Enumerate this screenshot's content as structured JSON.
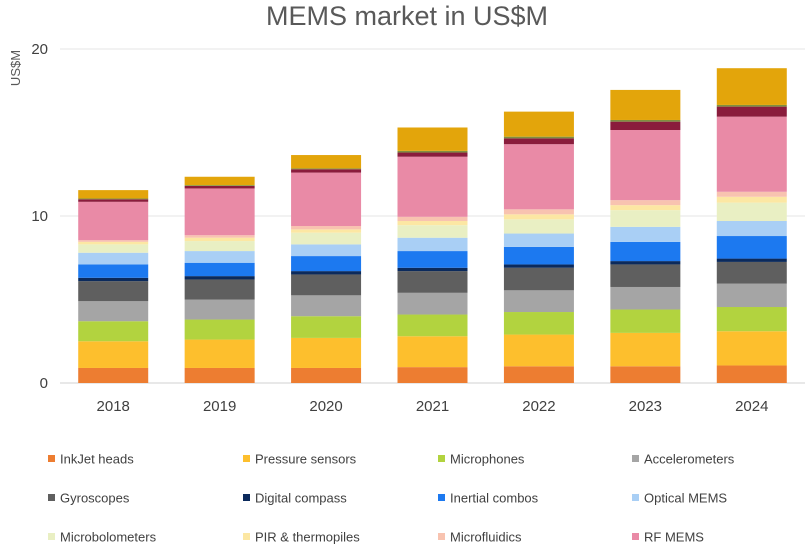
{
  "chart_data": {
    "type": "bar",
    "stacked": true,
    "title": "MEMS market in US$M",
    "ylabel": "US$M",
    "xlabel": "",
    "ylim": [
      0,
      20
    ],
    "yticks": [
      0,
      10,
      20
    ],
    "grid": true,
    "legend_position": "bottom",
    "categories": [
      "2018",
      "2019",
      "2020",
      "2021",
      "2022",
      "2023",
      "2024"
    ],
    "series": [
      {
        "name": "InkJet heads",
        "color": "#ed7d31",
        "values": [
          0.9,
          0.9,
          0.9,
          0.95,
          1.0,
          1.0,
          1.05
        ]
      },
      {
        "name": "Pressure sensors",
        "color": "#fdbf2d",
        "values": [
          1.6,
          1.7,
          1.8,
          1.85,
          1.9,
          2.0,
          2.05
        ]
      },
      {
        "name": "Microphones",
        "color": "#b2d33f",
        "values": [
          1.2,
          1.2,
          1.3,
          1.3,
          1.35,
          1.4,
          1.45
        ]
      },
      {
        "name": "Accelerometers",
        "color": "#a5a5a5",
        "values": [
          1.2,
          1.2,
          1.25,
          1.3,
          1.3,
          1.35,
          1.4
        ]
      },
      {
        "name": "Gyroscopes",
        "color": "#5f5f5f",
        "values": [
          1.2,
          1.2,
          1.25,
          1.3,
          1.35,
          1.35,
          1.3
        ]
      },
      {
        "name": "Digital compass",
        "color": "#0b2a5c",
        "values": [
          0.2,
          0.2,
          0.2,
          0.2,
          0.2,
          0.2,
          0.2
        ]
      },
      {
        "name": "Inertial combos",
        "color": "#1c79f0",
        "values": [
          0.8,
          0.8,
          0.9,
          1.0,
          1.05,
          1.15,
          1.35
        ]
      },
      {
        "name": "Optical MEMS",
        "color": "#a9cff5",
        "values": [
          0.7,
          0.7,
          0.7,
          0.8,
          0.8,
          0.9,
          0.9
        ]
      },
      {
        "name": "Microbolometers",
        "color": "#e9efc3",
        "values": [
          0.5,
          0.6,
          0.7,
          0.75,
          0.85,
          1.0,
          1.1
        ]
      },
      {
        "name": "PIR & thermopiles",
        "color": "#fce7a3",
        "values": [
          0.15,
          0.2,
          0.2,
          0.25,
          0.3,
          0.3,
          0.35
        ]
      },
      {
        "name": "Microfluidics",
        "color": "#f8c3b0",
        "values": [
          0.1,
          0.15,
          0.2,
          0.25,
          0.3,
          0.3,
          0.3
        ]
      },
      {
        "name": "RF MEMS",
        "color": "#e98aa6",
        "values": [
          2.3,
          2.8,
          3.2,
          3.6,
          3.9,
          4.2,
          4.5
        ]
      },
      {
        "name": "",
        "color": "#8a1c3c",
        "values": [
          0.15,
          0.15,
          0.2,
          0.25,
          0.35,
          0.5,
          0.6
        ]
      },
      {
        "name": "",
        "color": "#7f8f3f",
        "values": [
          0.05,
          0.05,
          0.05,
          0.1,
          0.1,
          0.1,
          0.1
        ]
      },
      {
        "name": "",
        "color": "#e3a50b",
        "values": [
          0.5,
          0.5,
          0.8,
          1.4,
          1.5,
          1.8,
          2.2
        ]
      }
    ]
  }
}
